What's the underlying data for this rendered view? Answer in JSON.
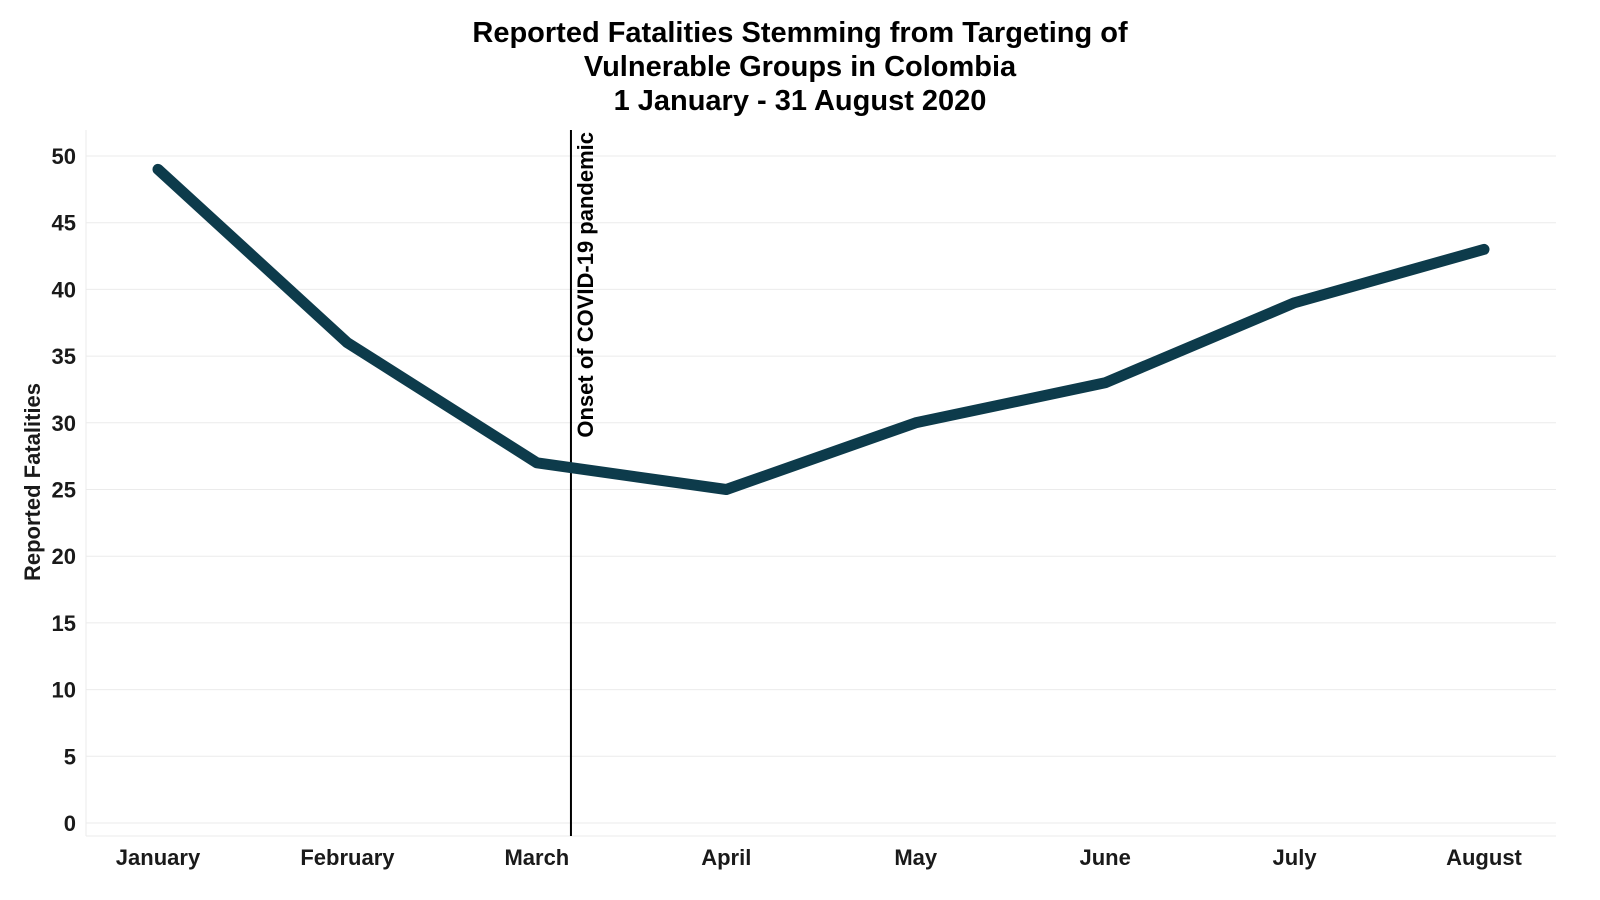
{
  "chart_data": {
    "type": "line",
    "title": "Reported Fatalities Stemming from Targeting of\nVulnerable Groups in Colombia\n1 January - 31 August 2020",
    "xlabel": "",
    "ylabel": "Reported Fatalities",
    "categories": [
      "January",
      "February",
      "March",
      "April",
      "May",
      "June",
      "July",
      "August"
    ],
    "series": [
      {
        "values": [
          49,
          36,
          27,
          25,
          30,
          33,
          39,
          43
        ]
      }
    ],
    "ylim": [
      0,
      52
    ],
    "yticks": [
      0,
      5,
      10,
      15,
      20,
      25,
      30,
      35,
      40,
      45,
      50
    ],
    "grid": "horizontal",
    "colors": {
      "line": "#0d3b4b",
      "grid": "#ebebeb",
      "annotation": "#000000"
    },
    "annotations": [
      {
        "text": "Onset of COVID-19 pandemic",
        "x": 2.18,
        "orientation": "vertical-line"
      }
    ]
  }
}
